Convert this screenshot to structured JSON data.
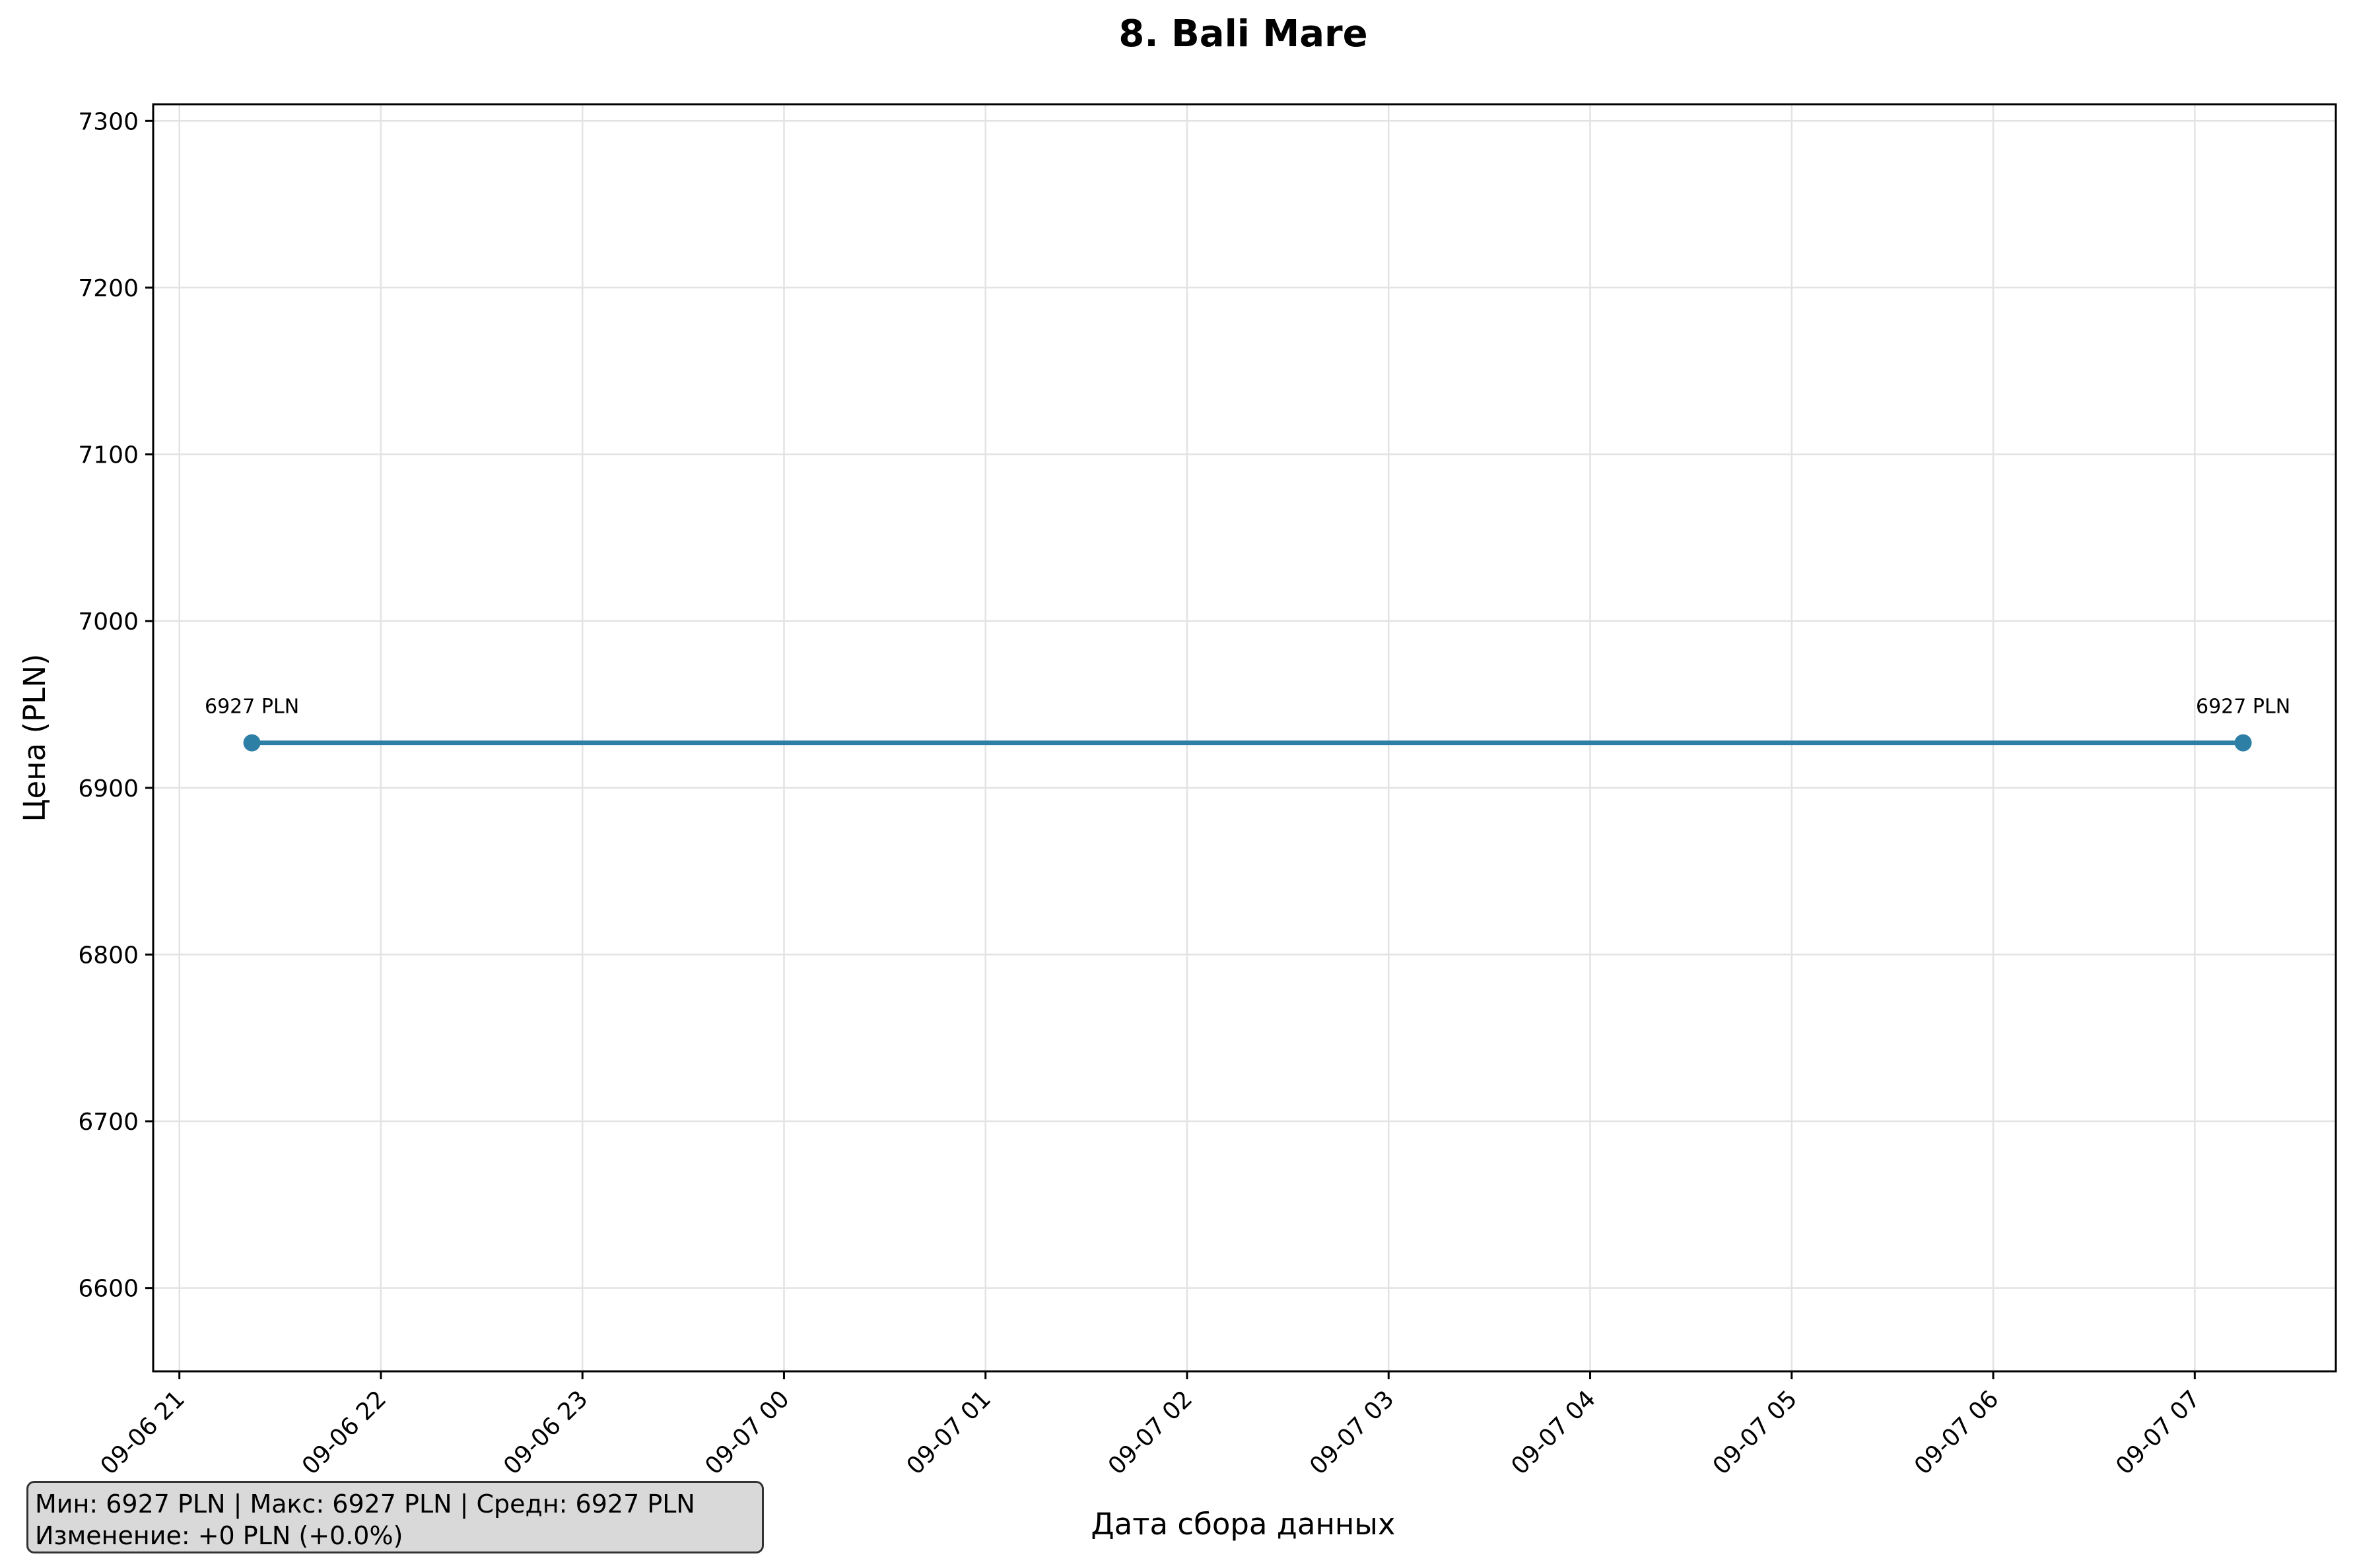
{
  "chart_data": {
    "type": "line",
    "title": "8. Bali Mare",
    "xlabel": "Дата сбора данных",
    "ylabel": "Цена (PLN)",
    "ylim": [
      6550,
      7310
    ],
    "yticks": [
      6600,
      6700,
      6800,
      6900,
      7000,
      7100,
      7200,
      7300
    ],
    "xlim_hours": [
      -0.13,
      10.7
    ],
    "xticks": [
      {
        "hour": 0,
        "label": "09-06 21"
      },
      {
        "hour": 1,
        "label": "09-06 22"
      },
      {
        "hour": 2,
        "label": "09-06 23"
      },
      {
        "hour": 3,
        "label": "09-07 00"
      },
      {
        "hour": 4,
        "label": "09-07 01"
      },
      {
        "hour": 5,
        "label": "09-07 02"
      },
      {
        "hour": 6,
        "label": "09-07 03"
      },
      {
        "hour": 7,
        "label": "09-07 04"
      },
      {
        "hour": 8,
        "label": "09-07 05"
      },
      {
        "hour": 9,
        "label": "09-07 06"
      },
      {
        "hour": 10,
        "label": "09-07 07"
      }
    ],
    "grid": true,
    "series": [
      {
        "name": "Bali Mare",
        "color": "#2e7fa6",
        "points": [
          {
            "hour": 0.36,
            "value": 6927,
            "label": "6927 PLN"
          },
          {
            "hour": 10.24,
            "value": 6927,
            "label": "6927 PLN"
          }
        ]
      }
    ]
  },
  "stats": {
    "line1": "Мин: 6927 PLN | Макс: 6927 PLN | Средн: 6927 PLN",
    "line2": "Изменение: +0 PLN (+0.0%)"
  }
}
